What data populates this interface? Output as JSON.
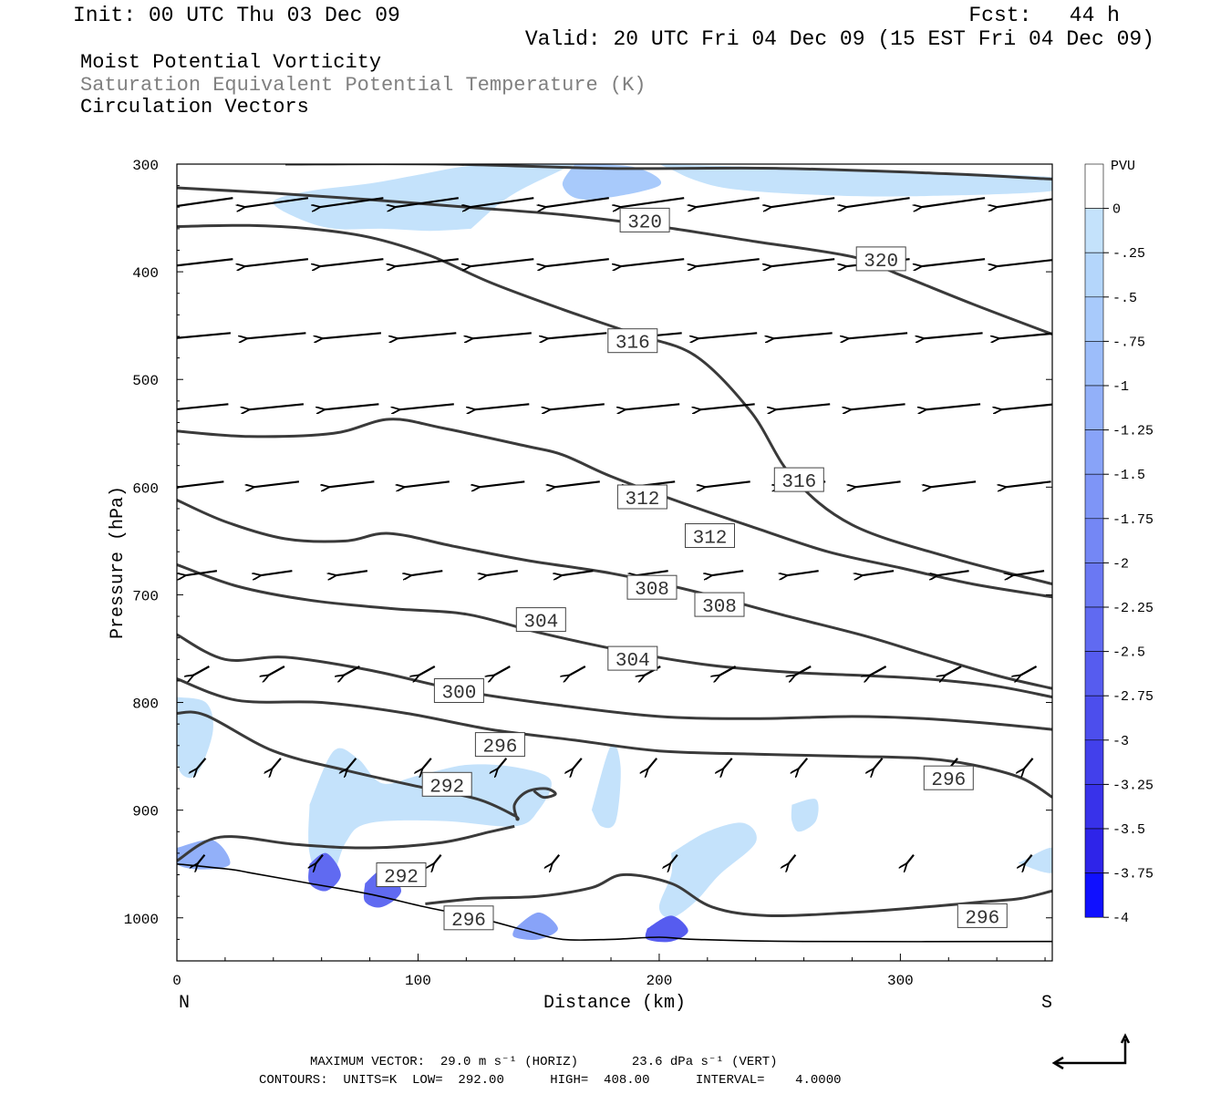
{
  "header": {
    "init": "Init: 00 UTC Thu 03 Dec 09",
    "fcst": "Fcst:   44 h",
    "valid": "Valid: 20 UTC Fri 04 Dec 09 (15 EST Fri 04 Dec 09)"
  },
  "titles": {
    "line1": "Moist Potential Vorticity",
    "line2": "Saturation Equivalent Potential Temperature (K)",
    "line3": "Circulation Vectors"
  },
  "colorbar": {
    "unit": "PVU",
    "labels": [
      "0",
      "-.25",
      "-.5",
      "-.75",
      "-1",
      "-1.25",
      "-1.5",
      "-1.75",
      "-2",
      "-2.25",
      "-2.5",
      "-2.75",
      "-3",
      "-3.25",
      "-3.5",
      "-3.75",
      "-4"
    ],
    "colors": [
      "#ffffff",
      "#c4e2fb",
      "#b4d6fb",
      "#a8cafb",
      "#9cbdfa",
      "#92b0f9",
      "#88a3f8",
      "#7e95f7",
      "#7487f5",
      "#6a78f3",
      "#606af1",
      "#565cef",
      "#4c4eed",
      "#4240eb",
      "#3832ea",
      "#2e24e9",
      "#1010ff"
    ]
  },
  "footer": {
    "line1": "MAXIMUM VECTOR:  29.0 m s⁻¹ (HORIZ)       23.6 dPa s⁻¹ (VERT)",
    "line2": "CONTOURS:  UNITS=K  LOW=  292.00      HIGH=  408.00      INTERVAL=    4.0000"
  },
  "chart_data": {
    "type": "cross-section",
    "xlabel": "Distance (km)",
    "ylabel": "Pressure (hPa)",
    "xlim": [
      0,
      363
    ],
    "ylim": [
      1040,
      300
    ],
    "x_ticks": [
      "0",
      "100",
      "200",
      "300"
    ],
    "y_ticks": [
      "300",
      "400",
      "500",
      "600",
      "700",
      "800",
      "900",
      "1000"
    ],
    "x_end_labels": {
      "left": "N",
      "right": "S"
    },
    "contour_labels": [
      {
        "text": "320",
        "x": 194,
        "p": 352
      },
      {
        "text": "320",
        "x": 292,
        "p": 388
      },
      {
        "text": "316",
        "x": 189,
        "p": 464
      },
      {
        "text": "316",
        "x": 258,
        "p": 593
      },
      {
        "text": "312",
        "x": 193,
        "p": 609
      },
      {
        "text": "312",
        "x": 221,
        "p": 645
      },
      {
        "text": "308",
        "x": 197,
        "p": 693
      },
      {
        "text": "308",
        "x": 225,
        "p": 709
      },
      {
        "text": "304",
        "x": 151,
        "p": 723
      },
      {
        "text": "304",
        "x": 189,
        "p": 759
      },
      {
        "text": "300",
        "x": 117,
        "p": 789
      },
      {
        "text": "296",
        "x": 134,
        "p": 839
      },
      {
        "text": "296",
        "x": 320,
        "p": 870
      },
      {
        "text": "292",
        "x": 112,
        "p": 876
      },
      {
        "text": "292",
        "x": 93,
        "p": 960
      },
      {
        "text": "296",
        "x": 121,
        "p": 1000
      },
      {
        "text": "296",
        "x": 334,
        "p": 998
      }
    ],
    "theta_e_contours": [
      {
        "p": [
          300,
          300,
          304,
          304,
          309,
          314
        ],
        "x": [
          45,
          110,
          180,
          250,
          320,
          363
        ]
      },
      {
        "p": [
          322,
          327,
          333,
          340,
          347,
          358,
          372,
          386,
          403,
          430,
          458
        ],
        "x": [
          0,
          40,
          80,
          120,
          160,
          200,
          240,
          280,
          300,
          330,
          363
        ]
      },
      {
        "p": [
          358,
          357,
          360,
          368,
          385,
          410,
          435,
          458,
          478,
          530,
          590,
          635,
          665,
          690
        ],
        "x": [
          0,
          30,
          55,
          80,
          105,
          130,
          160,
          190,
          215,
          238,
          255,
          280,
          320,
          363
        ]
      },
      {
        "p": [
          548,
          553,
          550,
          537,
          545,
          562,
          570,
          590,
          615,
          638,
          660,
          675,
          690,
          702
        ],
        "x": [
          0,
          30,
          65,
          88,
          110,
          145,
          160,
          180,
          210,
          240,
          270,
          300,
          330,
          363
        ]
      },
      {
        "p": [
          612,
          632,
          648,
          650,
          643,
          655,
          668,
          680,
          697,
          718,
          738,
          755,
          775,
          787
        ],
        "x": [
          0,
          20,
          45,
          70,
          88,
          115,
          145,
          180,
          215,
          250,
          285,
          310,
          340,
          363
        ]
      },
      {
        "p": [
          672,
          692,
          705,
          713,
          718,
          735,
          752,
          765,
          772,
          775,
          778,
          785,
          795
        ],
        "x": [
          0,
          25,
          55,
          90,
          120,
          150,
          185,
          220,
          255,
          285,
          310,
          340,
          363
        ]
      },
      {
        "p": [
          737,
          760,
          758,
          770,
          790,
          803,
          813,
          815,
          813,
          815,
          820,
          825
        ],
        "x": [
          0,
          20,
          45,
          80,
          120,
          160,
          200,
          240,
          280,
          310,
          340,
          363
        ]
      },
      {
        "p": [
          778,
          798,
          800,
          810,
          825,
          835,
          845,
          848,
          850,
          852,
          858,
          870,
          888
        ],
        "x": [
          0,
          25,
          60,
          95,
          130,
          165,
          200,
          240,
          280,
          310,
          330,
          350,
          363
        ]
      },
      {
        "p": [
          810,
          812,
          845,
          863,
          878,
          890,
          905,
          908,
          895,
          883,
          880,
          885,
          888,
          882
        ],
        "x": [
          0,
          12,
          40,
          70,
          100,
          125,
          140,
          141,
          140,
          145,
          153,
          157,
          152,
          148
        ]
      },
      {
        "p": [
          947,
          925,
          932,
          935,
          930,
          920,
          915
        ],
        "x": [
          0,
          18,
          50,
          80,
          110,
          130,
          140
        ]
      },
      {
        "p": [
          987,
          982,
          980,
          972,
          960,
          968,
          990,
          998,
          995,
          990,
          985,
          982,
          975
        ],
        "x": [
          103,
          125,
          150,
          172,
          185,
          205,
          222,
          245,
          280,
          310,
          335,
          350,
          363
        ]
      }
    ],
    "terrain": {
      "p": [
        950,
        955,
        958,
        968,
        978,
        990,
        1000,
        1012,
        1020,
        1020,
        1018,
        1020,
        1022,
        1022
      ],
      "x": [
        0,
        22,
        30,
        55,
        80,
        103,
        125,
        145,
        160,
        180,
        200,
        215,
        260,
        363
      ]
    },
    "mpv_negative_regions": [
      {
        "level": -0.25,
        "x": [
          122,
          138,
          160,
          165,
          140,
          120,
          100,
          80,
          55,
          40,
          50,
          65,
          85,
          105,
          122
        ],
        "p": [
          360,
          330,
          305,
          300,
          300,
          302,
          310,
          318,
          325,
          335,
          350,
          360,
          360,
          362,
          360
        ]
      },
      {
        "level": -0.75,
        "x": [
          165,
          190,
          200,
          170,
          160,
          165
        ],
        "p": [
          300,
          303,
          320,
          333,
          320,
          300
        ]
      },
      {
        "level": -0.25,
        "x": [
          200,
          363,
          363,
          300,
          260,
          230,
          215,
          205,
          200
        ],
        "p": [
          300,
          312,
          325,
          330,
          328,
          323,
          315,
          305,
          300
        ]
      },
      {
        "level": -0.25,
        "x": [
          0,
          12,
          15,
          10,
          5,
          0
        ],
        "p": [
          795,
          800,
          825,
          860,
          870,
          855
        ]
      },
      {
        "level": -0.25,
        "x": [
          55,
          65,
          75,
          85,
          100,
          120,
          140,
          155,
          150,
          140,
          110,
          80,
          70,
          62,
          55
        ],
        "p": [
          895,
          845,
          852,
          875,
          868,
          858,
          860,
          872,
          900,
          915,
          910,
          912,
          930,
          975,
          940
        ]
      },
      {
        "level": -0.25,
        "x": [
          172,
          180,
          184,
          182,
          176,
          172
        ],
        "p": [
          900,
          840,
          860,
          910,
          915,
          900
        ]
      },
      {
        "level": -0.25,
        "x": [
          205,
          220,
          235,
          240,
          225,
          215,
          205,
          200,
          205
        ],
        "p": [
          940,
          920,
          912,
          930,
          960,
          985,
          1000,
          990,
          960
        ]
      },
      {
        "level": -0.25,
        "x": [
          255,
          265,
          265,
          258,
          255
        ],
        "p": [
          895,
          890,
          910,
          920,
          910
        ]
      },
      {
        "level": -0.25,
        "x": [
          350,
          363,
          363,
          350
        ],
        "p": [
          948,
          935,
          958,
          950
        ]
      },
      {
        "level": -1.25,
        "x": [
          0,
          15,
          22,
          10,
          0
        ],
        "p": [
          935,
          928,
          950,
          955,
          950
        ]
      },
      {
        "level": -2.5,
        "x": [
          55,
          62,
          68,
          62,
          55
        ],
        "p": [
          950,
          940,
          960,
          975,
          968
        ]
      },
      {
        "level": -2.5,
        "x": [
          78,
          86,
          93,
          85,
          78
        ],
        "p": [
          968,
          955,
          975,
          990,
          985
        ]
      },
      {
        "level": -1.5,
        "x": [
          140,
          150,
          158,
          150,
          140
        ],
        "p": [
          1010,
          995,
          1010,
          1020,
          1018
        ]
      },
      {
        "level": -2.75,
        "x": [
          195,
          205,
          212,
          205,
          195
        ],
        "p": [
          1010,
          998,
          1012,
          1022,
          1020
        ]
      }
    ],
    "vectors_legend": {
      "max_horizontal_m_s": 29.0,
      "max_vertical_dPa_s": 23.6
    }
  }
}
